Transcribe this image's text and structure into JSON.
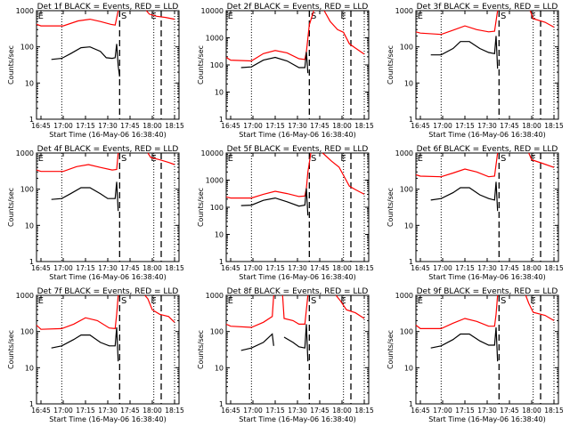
{
  "chart_data": {
    "type": "line",
    "layout": "3x3 grid",
    "shared": {
      "ylabel": "Counts/sec",
      "xlabel": "Start Time (16-May-06 16:38:40)",
      "x_tick_labels": [
        "16:45",
        "17:00",
        "17:15",
        "17:30",
        "17:45",
        "18:00",
        "18:15"
      ],
      "x_tick_minutes": [
        0,
        15,
        30,
        45,
        60,
        75,
        90
      ],
      "x_range_minutes": [
        -3,
        93
      ],
      "yscale": "log",
      "legend": "BLACK = Events, RED = LLD",
      "series_colors": {
        "events": "#000000",
        "lld": "#ff0000"
      },
      "markers": {
        "dotted_minutes": [
          14,
          76,
          90
        ],
        "dashed_minutes": [
          53,
          81
        ],
        "labels": [
          {
            "text": "E",
            "minute": -2
          },
          {
            "text": "S",
            "minute": 54
          },
          {
            "text": "E",
            "minute": 74
          }
        ]
      }
    },
    "panels": [
      {
        "title": "Det 1f BLACK = Events, RED = LLD",
        "yticks": [
          1,
          10,
          100,
          1000
        ],
        "ylim": [
          1,
          1000
        ],
        "lld": [
          [
            -3,
            420
          ],
          [
            0,
            380
          ],
          [
            15,
            380
          ],
          [
            25,
            520
          ],
          [
            33,
            580
          ],
          [
            40,
            500
          ],
          [
            47,
            420
          ],
          [
            50,
            400
          ],
          [
            52,
            1000
          ]
        ],
        "lld2": [
          [
            71,
            1000
          ],
          [
            73,
            800
          ],
          [
            78,
            700
          ],
          [
            84,
            650
          ],
          [
            90,
            580
          ]
        ],
        "events": [
          [
            7,
            45
          ],
          [
            14,
            48
          ],
          [
            20,
            65
          ],
          [
            27,
            95
          ],
          [
            33,
            100
          ],
          [
            40,
            75
          ],
          [
            44,
            50
          ],
          [
            48,
            48
          ],
          [
            50,
            50
          ],
          [
            51,
            120
          ],
          [
            52,
            30
          ],
          [
            53,
            15
          ]
        ]
      },
      {
        "title": "Det 2f BLACK = Events, RED = LLD",
        "yticks": [
          1,
          10,
          100,
          1000,
          10000
        ],
        "ylim": [
          1,
          10000
        ],
        "lld": [
          [
            -3,
            190
          ],
          [
            0,
            150
          ],
          [
            14,
            140
          ],
          [
            22,
            260
          ],
          [
            30,
            340
          ],
          [
            38,
            280
          ],
          [
            46,
            170
          ],
          [
            50,
            160
          ],
          [
            51,
            300
          ],
          [
            53,
            3000
          ],
          [
            56,
            10000
          ]
        ],
        "lld2": [
          [
            63,
            10000
          ],
          [
            67,
            4000
          ],
          [
            72,
            2000
          ],
          [
            76,
            1600
          ],
          [
            80,
            600
          ],
          [
            84,
            420
          ],
          [
            90,
            250
          ]
        ],
        "events": [
          [
            7,
            80
          ],
          [
            14,
            85
          ],
          [
            22,
            150
          ],
          [
            30,
            190
          ],
          [
            38,
            140
          ],
          [
            46,
            80
          ],
          [
            50,
            80
          ],
          [
            51,
            300
          ],
          [
            52,
            50
          ]
        ]
      },
      {
        "title": "Det 3f BLACK = Events, RED = LLD",
        "yticks": [
          1,
          10,
          100,
          1000
        ],
        "ylim": [
          1,
          1000
        ],
        "lld": [
          [
            -3,
            260
          ],
          [
            0,
            240
          ],
          [
            14,
            220
          ],
          [
            22,
            290
          ],
          [
            30,
            380
          ],
          [
            38,
            300
          ],
          [
            46,
            260
          ],
          [
            50,
            270
          ],
          [
            52,
            1000
          ]
        ],
        "lld2": [
          [
            74,
            1000
          ],
          [
            76,
            600
          ],
          [
            84,
            480
          ],
          [
            90,
            350
          ]
        ],
        "events": [
          [
            7,
            60
          ],
          [
            14,
            60
          ],
          [
            22,
            90
          ],
          [
            27,
            140
          ],
          [
            33,
            140
          ],
          [
            40,
            90
          ],
          [
            46,
            70
          ],
          [
            50,
            65
          ],
          [
            51,
            200
          ],
          [
            52,
            25
          ]
        ]
      },
      {
        "title": "Det 4f BLACK = Events, RED = LLD",
        "yticks": [
          1,
          10,
          100,
          1000
        ],
        "ylim": [
          1,
          1000
        ],
        "lld": [
          [
            -3,
            340
          ],
          [
            0,
            310
          ],
          [
            15,
            310
          ],
          [
            24,
            420
          ],
          [
            32,
            480
          ],
          [
            40,
            400
          ],
          [
            48,
            340
          ],
          [
            51,
            350
          ],
          [
            52,
            1000
          ]
        ],
        "lld2": [
          [
            72,
            1000
          ],
          [
            74,
            750
          ],
          [
            80,
            650
          ],
          [
            86,
            550
          ],
          [
            90,
            480
          ]
        ],
        "events": [
          [
            7,
            52
          ],
          [
            14,
            55
          ],
          [
            20,
            75
          ],
          [
            27,
            110
          ],
          [
            33,
            110
          ],
          [
            40,
            75
          ],
          [
            45,
            55
          ],
          [
            50,
            55
          ],
          [
            51,
            160
          ],
          [
            52,
            25
          ]
        ]
      },
      {
        "title": "Det 5f BLACK = Events, RED = LLD",
        "yticks": [
          1,
          10,
          100,
          1000,
          10000
        ],
        "ylim": [
          1,
          10000
        ],
        "lld": [
          [
            -3,
            240
          ],
          [
            0,
            220
          ],
          [
            14,
            220
          ],
          [
            22,
            300
          ],
          [
            30,
            390
          ],
          [
            38,
            320
          ],
          [
            46,
            250
          ],
          [
            50,
            260
          ],
          [
            51,
            500
          ],
          [
            52,
            2000
          ],
          [
            54,
            10000
          ]
        ],
        "lld2": [
          [
            62,
            10000
          ],
          [
            68,
            5000
          ],
          [
            73,
            3000
          ],
          [
            76,
            1500
          ],
          [
            80,
            600
          ],
          [
            84,
            450
          ],
          [
            90,
            300
          ]
        ],
        "events": [
          [
            7,
            115
          ],
          [
            14,
            120
          ],
          [
            22,
            180
          ],
          [
            30,
            220
          ],
          [
            38,
            160
          ],
          [
            46,
            110
          ],
          [
            50,
            120
          ],
          [
            51,
            500
          ],
          [
            52,
            50
          ]
        ]
      },
      {
        "title": "Det 6f BLACK = Events, RED = LLD",
        "yticks": [
          1,
          10,
          100,
          1000
        ],
        "ylim": [
          1,
          1000
        ],
        "lld": [
          [
            -3,
            250
          ],
          [
            0,
            230
          ],
          [
            14,
            220
          ],
          [
            22,
            280
          ],
          [
            30,
            360
          ],
          [
            38,
            300
          ],
          [
            46,
            220
          ],
          [
            50,
            230
          ],
          [
            52,
            1000
          ]
        ],
        "lld2": [
          [
            73,
            1000
          ],
          [
            75,
            650
          ],
          [
            82,
            520
          ],
          [
            90,
            400
          ]
        ],
        "events": [
          [
            7,
            50
          ],
          [
            14,
            55
          ],
          [
            22,
            80
          ],
          [
            27,
            110
          ],
          [
            33,
            110
          ],
          [
            40,
            70
          ],
          [
            46,
            55
          ],
          [
            50,
            50
          ],
          [
            51,
            160
          ],
          [
            52,
            25
          ]
        ]
      },
      {
        "title": "Det 7f BLACK = Events, RED = LLD",
        "yticks": [
          1,
          10,
          100,
          1000
        ],
        "ylim": [
          1,
          1000
        ],
        "lld": [
          [
            -3,
            150
          ],
          [
            0,
            115
          ],
          [
            14,
            120
          ],
          [
            22,
            160
          ],
          [
            30,
            240
          ],
          [
            38,
            200
          ],
          [
            46,
            125
          ],
          [
            50,
            120
          ],
          [
            51,
            300
          ],
          [
            52,
            1000
          ]
        ],
        "lld2": [
          [
            70,
            1000
          ],
          [
            72,
            800
          ],
          [
            75,
            400
          ],
          [
            80,
            300
          ],
          [
            86,
            260
          ],
          [
            90,
            180
          ]
        ],
        "events": [
          [
            7,
            35
          ],
          [
            14,
            40
          ],
          [
            22,
            60
          ],
          [
            27,
            80
          ],
          [
            33,
            80
          ],
          [
            40,
            50
          ],
          [
            46,
            40
          ],
          [
            50,
            40
          ],
          [
            51,
            130
          ],
          [
            52,
            15
          ]
        ]
      },
      {
        "title": "Det 8f BLACK = Events, RED = LLD",
        "yticks": [
          1,
          10,
          100,
          1000
        ],
        "ylim": [
          1,
          1000
        ],
        "lld": [
          [
            -3,
            160
          ],
          [
            0,
            140
          ],
          [
            14,
            130
          ],
          [
            22,
            180
          ],
          [
            28,
            260
          ],
          [
            29,
            1000
          ]
        ],
        "lld_mid": [
          [
            35,
            1000
          ],
          [
            36,
            230
          ],
          [
            42,
            200
          ],
          [
            46,
            160
          ],
          [
            50,
            160
          ],
          [
            51,
            400
          ],
          [
            52,
            1000
          ]
        ],
        "lld2": [
          [
            71,
            1000
          ],
          [
            74,
            700
          ],
          [
            78,
            400
          ],
          [
            84,
            330
          ],
          [
            90,
            230
          ]
        ],
        "events": [
          [
            7,
            30
          ],
          [
            14,
            35
          ],
          [
            22,
            50
          ],
          [
            28,
            85
          ],
          [
            29,
            40
          ]
        ],
        "events_mid": [
          [
            36,
            70
          ],
          [
            42,
            50
          ],
          [
            46,
            38
          ],
          [
            50,
            35
          ],
          [
            51,
            160
          ],
          [
            52,
            15
          ]
        ]
      },
      {
        "title": "Det 9f BLACK = Events, RED = LLD",
        "yticks": [
          1,
          10,
          100,
          1000
        ],
        "ylim": [
          1,
          1000
        ],
        "lld": [
          [
            -3,
            150
          ],
          [
            0,
            120
          ],
          [
            14,
            120
          ],
          [
            22,
            170
          ],
          [
            30,
            230
          ],
          [
            38,
            190
          ],
          [
            46,
            140
          ],
          [
            50,
            140
          ],
          [
            51,
            300
          ],
          [
            52,
            1000
          ]
        ],
        "lld2": [
          [
            71,
            1000
          ],
          [
            73,
            600
          ],
          [
            76,
            340
          ],
          [
            84,
            280
          ],
          [
            90,
            200
          ]
        ],
        "events": [
          [
            7,
            35
          ],
          [
            14,
            40
          ],
          [
            22,
            60
          ],
          [
            27,
            85
          ],
          [
            33,
            85
          ],
          [
            40,
            55
          ],
          [
            46,
            42
          ],
          [
            50,
            42
          ],
          [
            51,
            130
          ],
          [
            52,
            15
          ]
        ]
      }
    ]
  }
}
